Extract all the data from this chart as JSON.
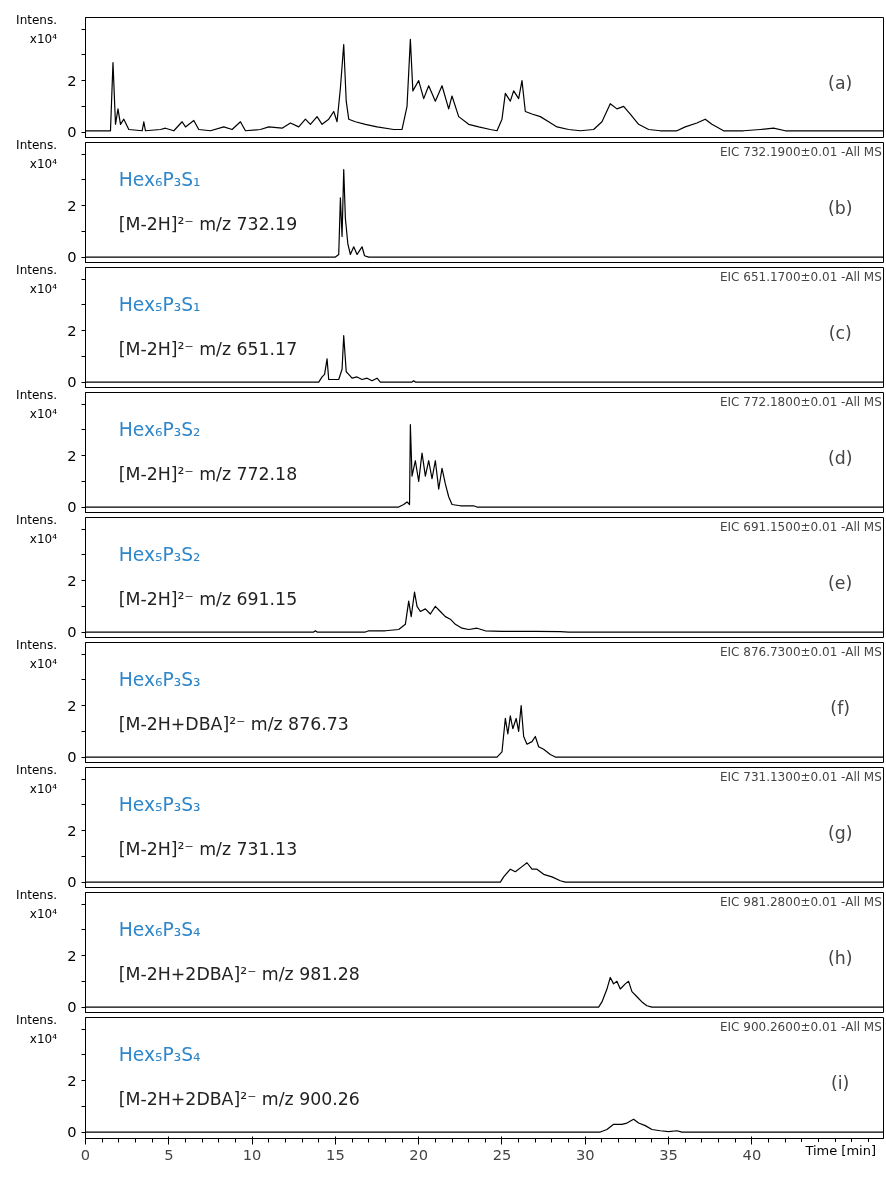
{
  "chart_data": [
    {
      "type": "line",
      "ylabel": "Intens. x10⁴",
      "xlim": [
        0,
        47.9
      ],
      "ylim": [
        -0.25,
        4.45
      ],
      "yticks": [
        0,
        {
          "value": 1,
          "label": null
        },
        2,
        {
          "value": 3,
          "label": null
        },
        {
          "value": 4,
          "label": null
        }
      ],
      "tick_labels": "y",
      "annotations": [
        "(a)"
      ],
      "x": [
        0,
        1.5,
        1.65,
        1.8,
        1.95,
        2.1,
        2.3,
        2.6,
        3.4,
        3.5,
        3.6,
        4.5,
        4.8,
        5.3,
        5.8,
        6.0,
        6.5,
        6.8,
        7.5,
        8.3,
        8.8,
        9.3,
        9.6,
        10.5,
        11,
        11.8,
        12.3,
        12.8,
        13.2,
        13.5,
        13.9,
        14.2,
        14.6,
        14.9,
        15.1,
        15.3,
        15.5,
        15.65,
        15.8,
        16.2,
        16.8,
        17.5,
        18.5,
        19.0,
        19.3,
        19.5,
        19.65,
        20.0,
        20.3,
        20.6,
        21.0,
        21.4,
        21.8,
        22.0,
        22.4,
        23.0,
        23.6,
        24.3,
        24.7,
        25.0,
        25.2,
        25.5,
        25.7,
        26.0,
        26.2,
        26.4,
        26.8,
        27.3,
        27.8,
        28.3,
        29,
        29.7,
        30.5,
        31.0,
        31.5,
        31.9,
        32.3,
        32.7,
        33.2,
        33.8,
        34.5,
        35.5,
        36,
        36.7,
        37.2,
        37.6,
        38.3,
        39.5,
        40.5,
        41.3,
        42,
        47.9
      ],
      "series": [
        {
          "color": "#000000",
          "values": [
            0.05,
            0.05,
            2.7,
            0.3,
            0.9,
            0.3,
            0.5,
            0.1,
            0.05,
            0.4,
            0.05,
            0.1,
            0.15,
            0.05,
            0.4,
            0.2,
            0.45,
            0.1,
            0.05,
            0.2,
            0.1,
            0.4,
            0.05,
            0.1,
            0.2,
            0.15,
            0.35,
            0.2,
            0.5,
            0.3,
            0.6,
            0.3,
            0.5,
            0.8,
            0.4,
            1.7,
            3.4,
            1.2,
            0.5,
            0.4,
            0.3,
            0.2,
            0.1,
            0.1,
            1.0,
            3.6,
            1.6,
            2.0,
            1.3,
            1.8,
            1.2,
            1.8,
            0.9,
            1.4,
            0.6,
            0.3,
            0.2,
            0.1,
            0.05,
            0.5,
            1.5,
            1.2,
            1.6,
            1.3,
            2.0,
            0.8,
            0.7,
            0.6,
            0.4,
            0.2,
            0.1,
            0.05,
            0.1,
            0.4,
            1.1,
            0.9,
            1.0,
            0.7,
            0.3,
            0.1,
            0.05,
            0.05,
            0.2,
            0.35,
            0.5,
            0.3,
            0.05,
            0.05,
            0.1,
            0.15,
            0.05,
            0.05
          ]
        }
      ]
    },
    {
      "type": "line",
      "ylabel": "Intens. x10⁴",
      "xlim": [
        0,
        47.9
      ],
      "ylim": [
        -0.25,
        4.45
      ],
      "yticks": [
        0,
        {
          "value": 1,
          "label": null
        },
        2,
        {
          "value": 3,
          "label": null
        },
        {
          "value": 4,
          "label": null
        }
      ],
      "tick_labels": "y",
      "annotations": [
        "(b)",
        "EIC 732.1900±0.01 -All MS",
        "Hex₆P₃S₁",
        "[M-2H]²⁻  m/z 732.19"
      ],
      "x": [
        0,
        15.0,
        15.2,
        15.3,
        15.4,
        15.5,
        15.6,
        15.75,
        15.9,
        16.1,
        16.3,
        16.5,
        16.6,
        16.75,
        17.0,
        47.9
      ],
      "series": [
        {
          "color": "#000000",
          "values": [
            0,
            0,
            0.1,
            2.3,
            0.8,
            3.4,
            1.5,
            0.5,
            0.1,
            0.4,
            0.1,
            0.3,
            0.4,
            0.05,
            0,
            0
          ]
        }
      ]
    },
    {
      "type": "line",
      "ylabel": "Intens. x10⁴",
      "xlim": [
        0,
        47.9
      ],
      "ylim": [
        -0.25,
        4.45
      ],
      "yticks": [
        0,
        {
          "value": 1,
          "label": null
        },
        2,
        {
          "value": 3,
          "label": null
        },
        {
          "value": 4,
          "label": null
        }
      ],
      "tick_labels": "y",
      "annotations": [
        "(c)",
        "EIC 651.1700±0.01 -All MS",
        "Hex₅P₃S₁",
        "[M-2H]²⁻  m/z 651.17"
      ],
      "x": [
        0,
        14.0,
        14.2,
        14.35,
        14.5,
        14.6,
        15.2,
        15.4,
        15.5,
        15.65,
        15.8,
        16.0,
        16.3,
        16.6,
        16.9,
        17.2,
        17.5,
        17.7,
        19.6,
        19.7,
        19.8,
        47.9
      ],
      "series": [
        {
          "color": "#000000",
          "values": [
            0,
            0,
            0.2,
            0.3,
            0.9,
            0.1,
            0.1,
            0.5,
            1.8,
            0.4,
            0.3,
            0.15,
            0.2,
            0.1,
            0.15,
            0.05,
            0.15,
            0,
            0,
            0.05,
            0,
            0
          ]
        }
      ]
    },
    {
      "type": "line",
      "ylabel": "Intens. x10⁴",
      "xlim": [
        0,
        47.9
      ],
      "ylim": [
        -0.25,
        4.45
      ],
      "yticks": [
        0,
        {
          "value": 1,
          "label": null
        },
        2,
        {
          "value": 3,
          "label": null
        },
        {
          "value": 4,
          "label": null
        }
      ],
      "tick_labels": "y",
      "annotations": [
        "(d)",
        "EIC 772.1800±0.01 -All MS",
        "Hex₆P₃S₂",
        "[M-2H]²⁻  m/z 772.18"
      ],
      "x": [
        0,
        18.8,
        19.1,
        19.3,
        19.45,
        19.5,
        19.6,
        19.8,
        20.0,
        20.2,
        20.4,
        20.6,
        20.8,
        21.0,
        21.2,
        21.4,
        21.6,
        21.8,
        22.0,
        22.5,
        23.3,
        23.5,
        47.9
      ],
      "series": [
        {
          "color": "#000000",
          "values": [
            0,
            0,
            0.1,
            0.2,
            0.1,
            3.2,
            1.2,
            1.8,
            1.0,
            2.1,
            1.2,
            1.8,
            1.1,
            1.8,
            0.7,
            1.5,
            0.9,
            0.4,
            0.1,
            0.05,
            0.05,
            0,
            0
          ]
        }
      ]
    },
    {
      "type": "line",
      "ylabel": "Intens. x10⁴",
      "xlim": [
        0,
        47.9
      ],
      "ylim": [
        -0.25,
        4.45
      ],
      "yticks": [
        0,
        {
          "value": 1,
          "label": null
        },
        2,
        {
          "value": 3,
          "label": null
        },
        {
          "value": 4,
          "label": null
        }
      ],
      "tick_labels": "y",
      "annotations": [
        "(e)",
        "EIC 691.1500±0.01 -All MS",
        "Hex₅P₃S₂",
        "[M-2H]²⁻  m/z 691.15"
      ],
      "x": [
        0,
        13.7,
        13.8,
        13.9,
        16.8,
        17.0,
        18.0,
        18.8,
        19.2,
        19.4,
        19.55,
        19.75,
        19.9,
        20.1,
        20.4,
        20.7,
        21.0,
        21.3,
        21.6,
        21.9,
        22.2,
        22.6,
        23.0,
        23.5,
        24.0,
        25,
        27,
        28.5,
        29,
        47.9
      ],
      "series": [
        {
          "color": "#000000",
          "values": [
            0,
            0,
            0.05,
            0,
            0,
            0.05,
            0.05,
            0.1,
            0.3,
            1.2,
            0.6,
            1.55,
            1.0,
            0.8,
            0.9,
            0.7,
            1.0,
            0.8,
            0.6,
            0.5,
            0.3,
            0.15,
            0.1,
            0.15,
            0.05,
            0.03,
            0.03,
            0.02,
            0,
            0
          ]
        }
      ]
    },
    {
      "type": "line",
      "ylabel": "Intens. x10⁴",
      "xlim": [
        0,
        47.9
      ],
      "ylim": [
        -0.25,
        4.45
      ],
      "yticks": [
        0,
        {
          "value": 1,
          "label": null
        },
        2,
        {
          "value": 3,
          "label": null
        },
        {
          "value": 4,
          "label": null
        }
      ],
      "tick_labels": "y",
      "annotations": [
        "(f)",
        "EIC 876.7300±0.01 -All MS",
        "Hex₆P₃S₃",
        "[M-2H+DBA]²⁻  m/z 876.73"
      ],
      "x": [
        0,
        24.7,
        25.0,
        25.2,
        25.35,
        25.5,
        25.65,
        25.85,
        26.0,
        26.15,
        26.3,
        26.5,
        26.8,
        27.0,
        27.2,
        27.5,
        27.9,
        28.2,
        47.9
      ],
      "series": [
        {
          "color": "#000000",
          "values": [
            0,
            0,
            0.2,
            1.5,
            0.9,
            1.6,
            1.1,
            1.5,
            1.0,
            2.0,
            0.8,
            0.5,
            0.6,
            0.8,
            0.4,
            0.3,
            0.1,
            0,
            0
          ]
        }
      ]
    },
    {
      "type": "line",
      "ylabel": "Intens. x10⁴",
      "xlim": [
        0,
        47.9
      ],
      "ylim": [
        -0.25,
        4.45
      ],
      "yticks": [
        0,
        {
          "value": 1,
          "label": null
        },
        2,
        {
          "value": 3,
          "label": null
        },
        {
          "value": 4,
          "label": null
        }
      ],
      "tick_labels": "y",
      "annotations": [
        "(g)",
        "EIC 731.1300±0.01 -All MS",
        "Hex₅P₃S₃",
        "[M-2H]²⁻  m/z 731.13"
      ],
      "x": [
        0,
        24.9,
        25.1,
        25.5,
        25.8,
        26.2,
        26.5,
        26.8,
        27.1,
        27.5,
        28.0,
        28.5,
        28.8,
        47.9
      ],
      "series": [
        {
          "color": "#000000",
          "values": [
            0,
            0,
            0.2,
            0.5,
            0.4,
            0.6,
            0.75,
            0.5,
            0.5,
            0.3,
            0.2,
            0.05,
            0,
            0
          ]
        }
      ]
    },
    {
      "type": "line",
      "ylabel": "Intens. x10⁴",
      "xlim": [
        0,
        47.9
      ],
      "ylim": [
        -0.25,
        4.45
      ],
      "yticks": [
        0,
        {
          "value": 1,
          "label": null
        },
        2,
        {
          "value": 3,
          "label": null
        },
        {
          "value": 4,
          "label": null
        }
      ],
      "tick_labels": "y",
      "annotations": [
        "(h)",
        "EIC 981.2800±0.01 -All MS",
        "Hex₆P₃S₄",
        "[M-2H+2DBA]²⁻  m/z 981.28"
      ],
      "x": [
        0,
        30.8,
        31.0,
        31.3,
        31.5,
        31.7,
        31.9,
        32.1,
        32.4,
        32.6,
        32.8,
        33.1,
        33.4,
        33.7,
        34.0,
        47.9
      ],
      "series": [
        {
          "color": "#000000",
          "values": [
            0,
            0,
            0.2,
            0.7,
            1.15,
            0.9,
            1.0,
            0.7,
            0.9,
            1.0,
            0.6,
            0.4,
            0.2,
            0.05,
            0,
            0
          ]
        }
      ]
    },
    {
      "type": "line",
      "ylabel": "Intens. x10⁴",
      "xlabel": "Time [min]",
      "xlim": [
        0,
        47.9
      ],
      "xticks": [
        0,
        5,
        10,
        15,
        20,
        25,
        30,
        35,
        40
      ],
      "ylim": [
        -0.25,
        4.45
      ],
      "yticks": [
        0,
        {
          "value": 1,
          "label": null
        },
        2,
        {
          "value": 3,
          "label": null
        },
        {
          "value": 4,
          "label": null
        }
      ],
      "annotations": [
        "(i)",
        "EIC 900.2600±0.01 -All MS",
        "Hex₅P₃S₄",
        "[M-2H+2DBA]²⁻  m/z 900.26"
      ],
      "x": [
        0,
        30.9,
        31.3,
        31.7,
        32.2,
        32.5,
        32.9,
        33.2,
        33.6,
        34.0,
        34.5,
        35.0,
        35.5,
        35.8,
        47.9
      ],
      "series": [
        {
          "color": "#000000",
          "values": [
            0,
            0,
            0.1,
            0.3,
            0.3,
            0.35,
            0.5,
            0.35,
            0.25,
            0.1,
            0.05,
            0.02,
            0.05,
            0,
            0
          ]
        }
      ]
    }
  ]
}
